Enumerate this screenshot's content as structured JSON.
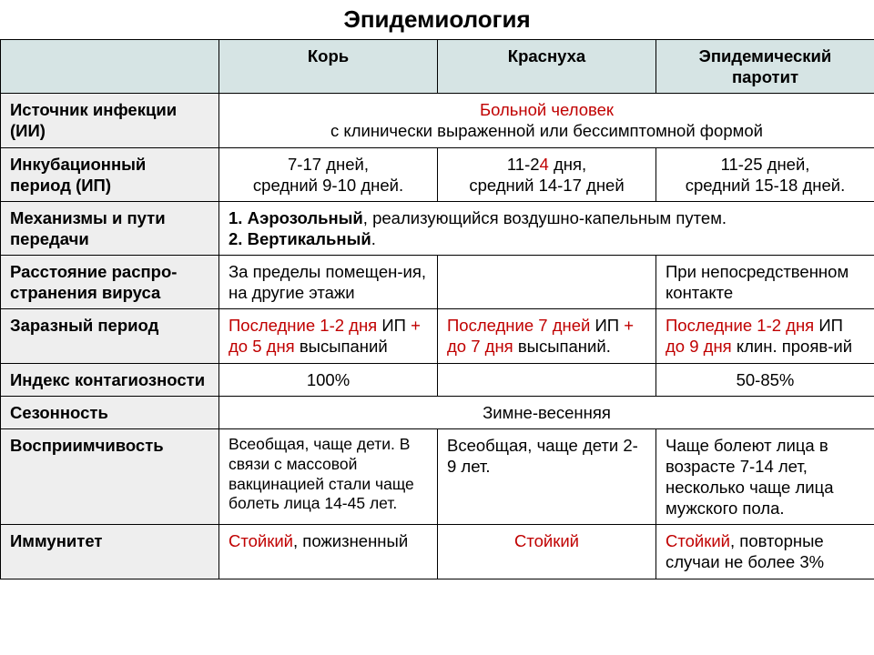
{
  "colors": {
    "header_bg": "#d6e4e4",
    "label_bg": "#eeeeee",
    "border": "#000000",
    "red": "#c00000",
    "text": "#000000",
    "bg": "#ffffff"
  },
  "fontsize_pt": 14,
  "title": "Эпидемиология",
  "columns": [
    "Корь",
    "Краснуха",
    "Эпидемический паротит"
  ],
  "rows": {
    "source": {
      "label": "Источник инфекции (ИИ)",
      "line1": "Больной человек",
      "line2": "с клинически выраженной или бессимптомной формой"
    },
    "incub": {
      "label": "Инкубационный период (ИП)",
      "c1_a": "7-17 дней,",
      "c1_b": "средний 9-10 дней.",
      "c2_a": "11-2",
      "c2_red": "4",
      "c2_a2": " дня,",
      "c2_b": "средний 14-17 дней",
      "c3_a": "11-25 дней,",
      "c3_b": "средний 15-18 дней."
    },
    "mech": {
      "label": "Механизмы и пути передачи",
      "l1a": "1. ",
      "l1b": "Аэрозольный",
      "l1c": ", реализующийся воздушно-капельным путем.",
      "l2a": "2. ",
      "l2b": "Вертикальный",
      "l2c": "."
    },
    "dist": {
      "label": "Расстояние распро-странения вируса",
      "c1": "За пределы помещен-ия, на другие этажи",
      "c2": "",
      "c3": "При непосредственном контакте"
    },
    "contag": {
      "label": "Заразный период",
      "c1a": "Последние 1-2 дня ",
      "c1b": "ИП",
      "c1c": " + до 5 дня ",
      "c1d": "высыпаний",
      "c2a": "Последние 7 дней ",
      "c2b": "ИП",
      "c2c": " + до 7 дня ",
      "c2d": "высыпаний.",
      "c3a": "Последние 1-2 дня ",
      "c3b": "ИП",
      "c3c": " до 9 дня ",
      "c3d": "клин. прояв-ий"
    },
    "index": {
      "label": "Индекс контагиозности",
      "c1": "100%",
      "c2": "",
      "c3": "50-85%"
    },
    "season": {
      "label": "Сезонность",
      "val": "Зимне-весенняя"
    },
    "suscept": {
      "label": "Восприимчивость",
      "c1": "Всеобщая, чаще дети. В связи с массовой вакцинацией стали чаще болеть лица 14-45 лет.",
      "c2": "Всеобщая, чаще дети 2-9 лет.",
      "c3": "Чаще болеют лица в возрасте 7-14 лет, несколько чаще лица мужского пола."
    },
    "immun": {
      "label": "Иммунитет",
      "c1a": "Стойкий",
      "c1b": ", пожизненный",
      "c2": "Стойкий",
      "c3a": "Стойкий",
      "c3b": ", повторные случаи не более 3%"
    }
  }
}
